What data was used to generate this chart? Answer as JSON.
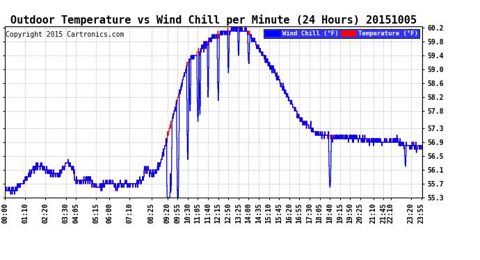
{
  "title": "Outdoor Temperature vs Wind Chill per Minute (24 Hours) 20151005",
  "copyright": "Copyright 2015 Cartronics.com",
  "ylim": [
    55.3,
    60.25
  ],
  "yticks": [
    55.3,
    55.7,
    56.1,
    56.5,
    56.9,
    57.3,
    57.8,
    58.2,
    58.6,
    59.0,
    59.4,
    59.8,
    60.2
  ],
  "legend_wind_chill": "Wind Chill (°F)",
  "legend_temp": "Temperature (°F)",
  "wind_chill_color": "#0000FF",
  "temp_color": "#FF0000",
  "bg_color": "#FFFFFF",
  "plot_bg_color": "#FFFFFF",
  "grid_color": "#C0C0C0",
  "title_fontsize": 11,
  "copyright_fontsize": 7,
  "tick_fontsize": 7,
  "xtick_times": [
    "00:00",
    "01:10",
    "02:20",
    "03:30",
    "04:05",
    "05:15",
    "06:00",
    "07:10",
    "08:25",
    "09:20",
    "09:55",
    "10:30",
    "11:05",
    "11:40",
    "12:15",
    "12:50",
    "13:25",
    "14:00",
    "14:35",
    "15:10",
    "15:45",
    "16:20",
    "16:55",
    "17:30",
    "18:05",
    "18:40",
    "19:15",
    "19:50",
    "20:25",
    "21:10",
    "21:45",
    "22:10",
    "23:20",
    "23:55"
  ]
}
